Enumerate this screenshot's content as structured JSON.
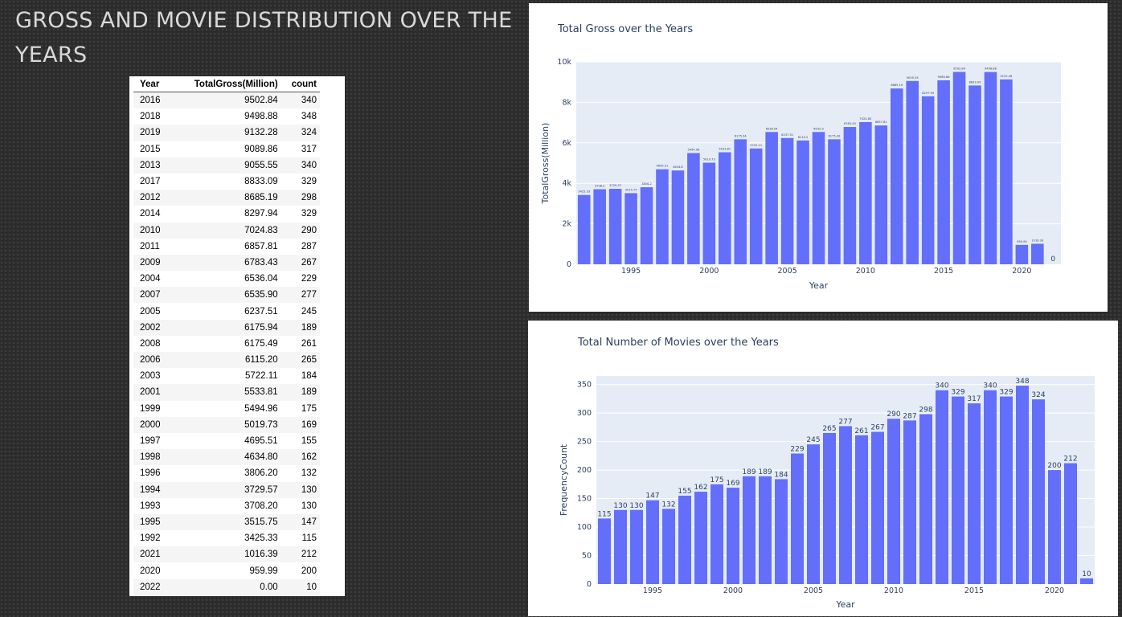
{
  "slide": {
    "title": "GROSS AND MOVIE DISTRIBUTION OVER THE YEARS"
  },
  "table": {
    "headers": [
      "Year",
      "TotalGross(Million)",
      "count"
    ],
    "rows": [
      [
        "2016",
        "9502.84",
        "340"
      ],
      [
        "2018",
        "9498.88",
        "348"
      ],
      [
        "2019",
        "9132.28",
        "324"
      ],
      [
        "2015",
        "9089.86",
        "317"
      ],
      [
        "2013",
        "9055.55",
        "340"
      ],
      [
        "2017",
        "8833.09",
        "329"
      ],
      [
        "2012",
        "8685.19",
        "298"
      ],
      [
        "2014",
        "8297.94",
        "329"
      ],
      [
        "2010",
        "7024.83",
        "290"
      ],
      [
        "2011",
        "6857.81",
        "287"
      ],
      [
        "2009",
        "6783.43",
        "267"
      ],
      [
        "2004",
        "6536.04",
        "229"
      ],
      [
        "2007",
        "6535.90",
        "277"
      ],
      [
        "2005",
        "6237.51",
        "245"
      ],
      [
        "2002",
        "6175.94",
        "189"
      ],
      [
        "2008",
        "6175.49",
        "261"
      ],
      [
        "2006",
        "6115.20",
        "265"
      ],
      [
        "2003",
        "5722.11",
        "184"
      ],
      [
        "2001",
        "5533.81",
        "189"
      ],
      [
        "1999",
        "5494.96",
        "175"
      ],
      [
        "2000",
        "5019.73",
        "169"
      ],
      [
        "1997",
        "4695.51",
        "155"
      ],
      [
        "1998",
        "4634.80",
        "162"
      ],
      [
        "1996",
        "3806.20",
        "132"
      ],
      [
        "1994",
        "3729.57",
        "130"
      ],
      [
        "1993",
        "3708.20",
        "130"
      ],
      [
        "1995",
        "3515.75",
        "147"
      ],
      [
        "1992",
        "3425.33",
        "115"
      ],
      [
        "2021",
        "1016.39",
        "212"
      ],
      [
        "2020",
        "959.99",
        "200"
      ],
      [
        "2022",
        "0.00",
        "10"
      ]
    ]
  },
  "chart_data": [
    {
      "type": "bar",
      "title": "Total Gross over the Years",
      "xlabel": "Year",
      "ylabel": "TotalGross(Million)",
      "ylim": [
        0,
        10000
      ],
      "yticks": [
        0,
        2000,
        4000,
        6000,
        8000,
        10000
      ],
      "ytick_labels": [
        "0",
        "2k",
        "4k",
        "6k",
        "8k",
        "10k"
      ],
      "xticks": [
        1995,
        2000,
        2005,
        2010,
        2015,
        2020
      ],
      "x": [
        1992,
        1993,
        1994,
        1995,
        1996,
        1997,
        1998,
        1999,
        2000,
        2001,
        2002,
        2003,
        2004,
        2005,
        2006,
        2007,
        2008,
        2009,
        2010,
        2011,
        2012,
        2013,
        2014,
        2015,
        2016,
        2017,
        2018,
        2019,
        2020,
        2021,
        2022
      ],
      "values": [
        3425.33,
        3708.2,
        3729.57,
        3515.75,
        3806.2,
        4695.51,
        4634.8,
        5494.96,
        5019.73,
        5533.81,
        6175.94,
        5722.11,
        6536.04,
        6237.51,
        6115.2,
        6535.9,
        6175.49,
        6783.43,
        7024.83,
        6857.81,
        8685.19,
        9055.55,
        8297.94,
        9089.86,
        9502.84,
        8833.09,
        9498.88,
        9132.28,
        959.99,
        1016.39,
        0
      ],
      "labels": [
        "3425.33",
        "3708.2",
        "3729.57",
        "3515.75",
        "3806.2",
        "4695.51",
        "4634.8",
        "5494.96",
        "5019.73",
        "5533.81",
        "6175.94",
        "5722.11",
        "6536.04",
        "6237.51",
        "6115.2",
        "6535.9",
        "6175.49",
        "6783.43",
        "7024.83",
        "6857.81",
        "8685.19",
        "9055.55",
        "8297.94",
        "9089.86",
        "9502.84",
        "8833.09",
        "9498.88",
        "9132.28",
        "959.99",
        "1016.39",
        "0"
      ],
      "color": "#636efa"
    },
    {
      "type": "bar",
      "title": "Total Number of Movies over the Years",
      "xlabel": "Year",
      "ylabel": "FrequencyCount",
      "ylim": [
        0,
        365
      ],
      "yticks": [
        0,
        50,
        100,
        150,
        200,
        250,
        300,
        350
      ],
      "ytick_labels": [
        "0",
        "50",
        "100",
        "150",
        "200",
        "250",
        "300",
        "350"
      ],
      "xticks": [
        1995,
        2000,
        2005,
        2010,
        2015,
        2020
      ],
      "x": [
        1992,
        1993,
        1994,
        1995,
        1996,
        1997,
        1998,
        1999,
        2000,
        2001,
        2002,
        2003,
        2004,
        2005,
        2006,
        2007,
        2008,
        2009,
        2010,
        2011,
        2012,
        2013,
        2014,
        2015,
        2016,
        2017,
        2018,
        2019,
        2020,
        2021,
        2022
      ],
      "values": [
        115,
        130,
        130,
        147,
        132,
        155,
        162,
        175,
        169,
        189,
        189,
        184,
        229,
        245,
        265,
        277,
        261,
        267,
        290,
        287,
        298,
        340,
        329,
        317,
        340,
        329,
        348,
        324,
        200,
        212,
        10
      ],
      "labels": [
        "115",
        "130",
        "130",
        "147",
        "132",
        "155",
        "162",
        "175",
        "169",
        "189",
        "189",
        "184",
        "229",
        "245",
        "265",
        "277",
        "261",
        "267",
        "290",
        "287",
        "298",
        "340",
        "329",
        "317",
        "340",
        "329",
        "348",
        "324",
        "200",
        "212",
        "10"
      ],
      "color": "#636efa"
    }
  ]
}
